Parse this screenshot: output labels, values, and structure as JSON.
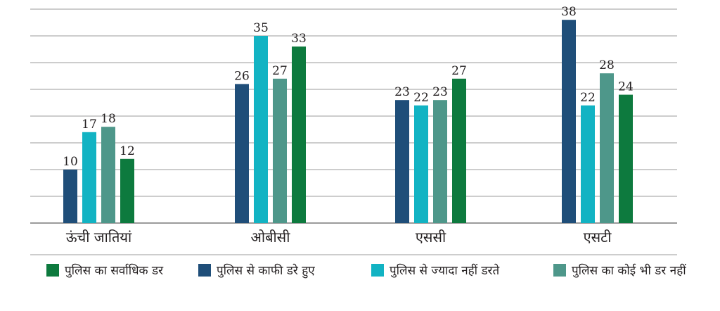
{
  "chart_data": {
    "type": "bar",
    "categories": [
      "ऊंची जातियां",
      "ओबीसी",
      "एससी",
      "एसटी"
    ],
    "ylim": [
      0,
      40
    ],
    "grid": true,
    "legend_position": "bottom",
    "series": [
      {
        "name": "पुलिस से काफी डरे हुए",
        "color": "#1f4e79",
        "values": [
          10,
          26,
          23,
          38
        ]
      },
      {
        "name": "पुलिस से ज्यादा नहीं डरते",
        "color": "#12b3c3",
        "values": [
          17,
          35,
          22,
          22
        ]
      },
      {
        "name": "पुलिस का कोई भी डर नहीं",
        "color": "#4e978a",
        "values": [
          18,
          27,
          23,
          28
        ]
      },
      {
        "name": "पुलिस का सर्वाधिक डर",
        "color": "#0d7a3e",
        "values": [
          12,
          33,
          27,
          24
        ]
      }
    ]
  },
  "legend": [
    {
      "label": "पुलिस का सर्वाधिक डर",
      "color": "#0d7a3e"
    },
    {
      "label": "पुलिस से काफी डरे हुए",
      "color": "#1f4e79"
    },
    {
      "label": "पुलिस से ज्यादा नहीं डरते",
      "color": "#12b3c3"
    },
    {
      "label": "पुलिस का कोई भी डर नहीं",
      "color": "#4e978a"
    }
  ]
}
